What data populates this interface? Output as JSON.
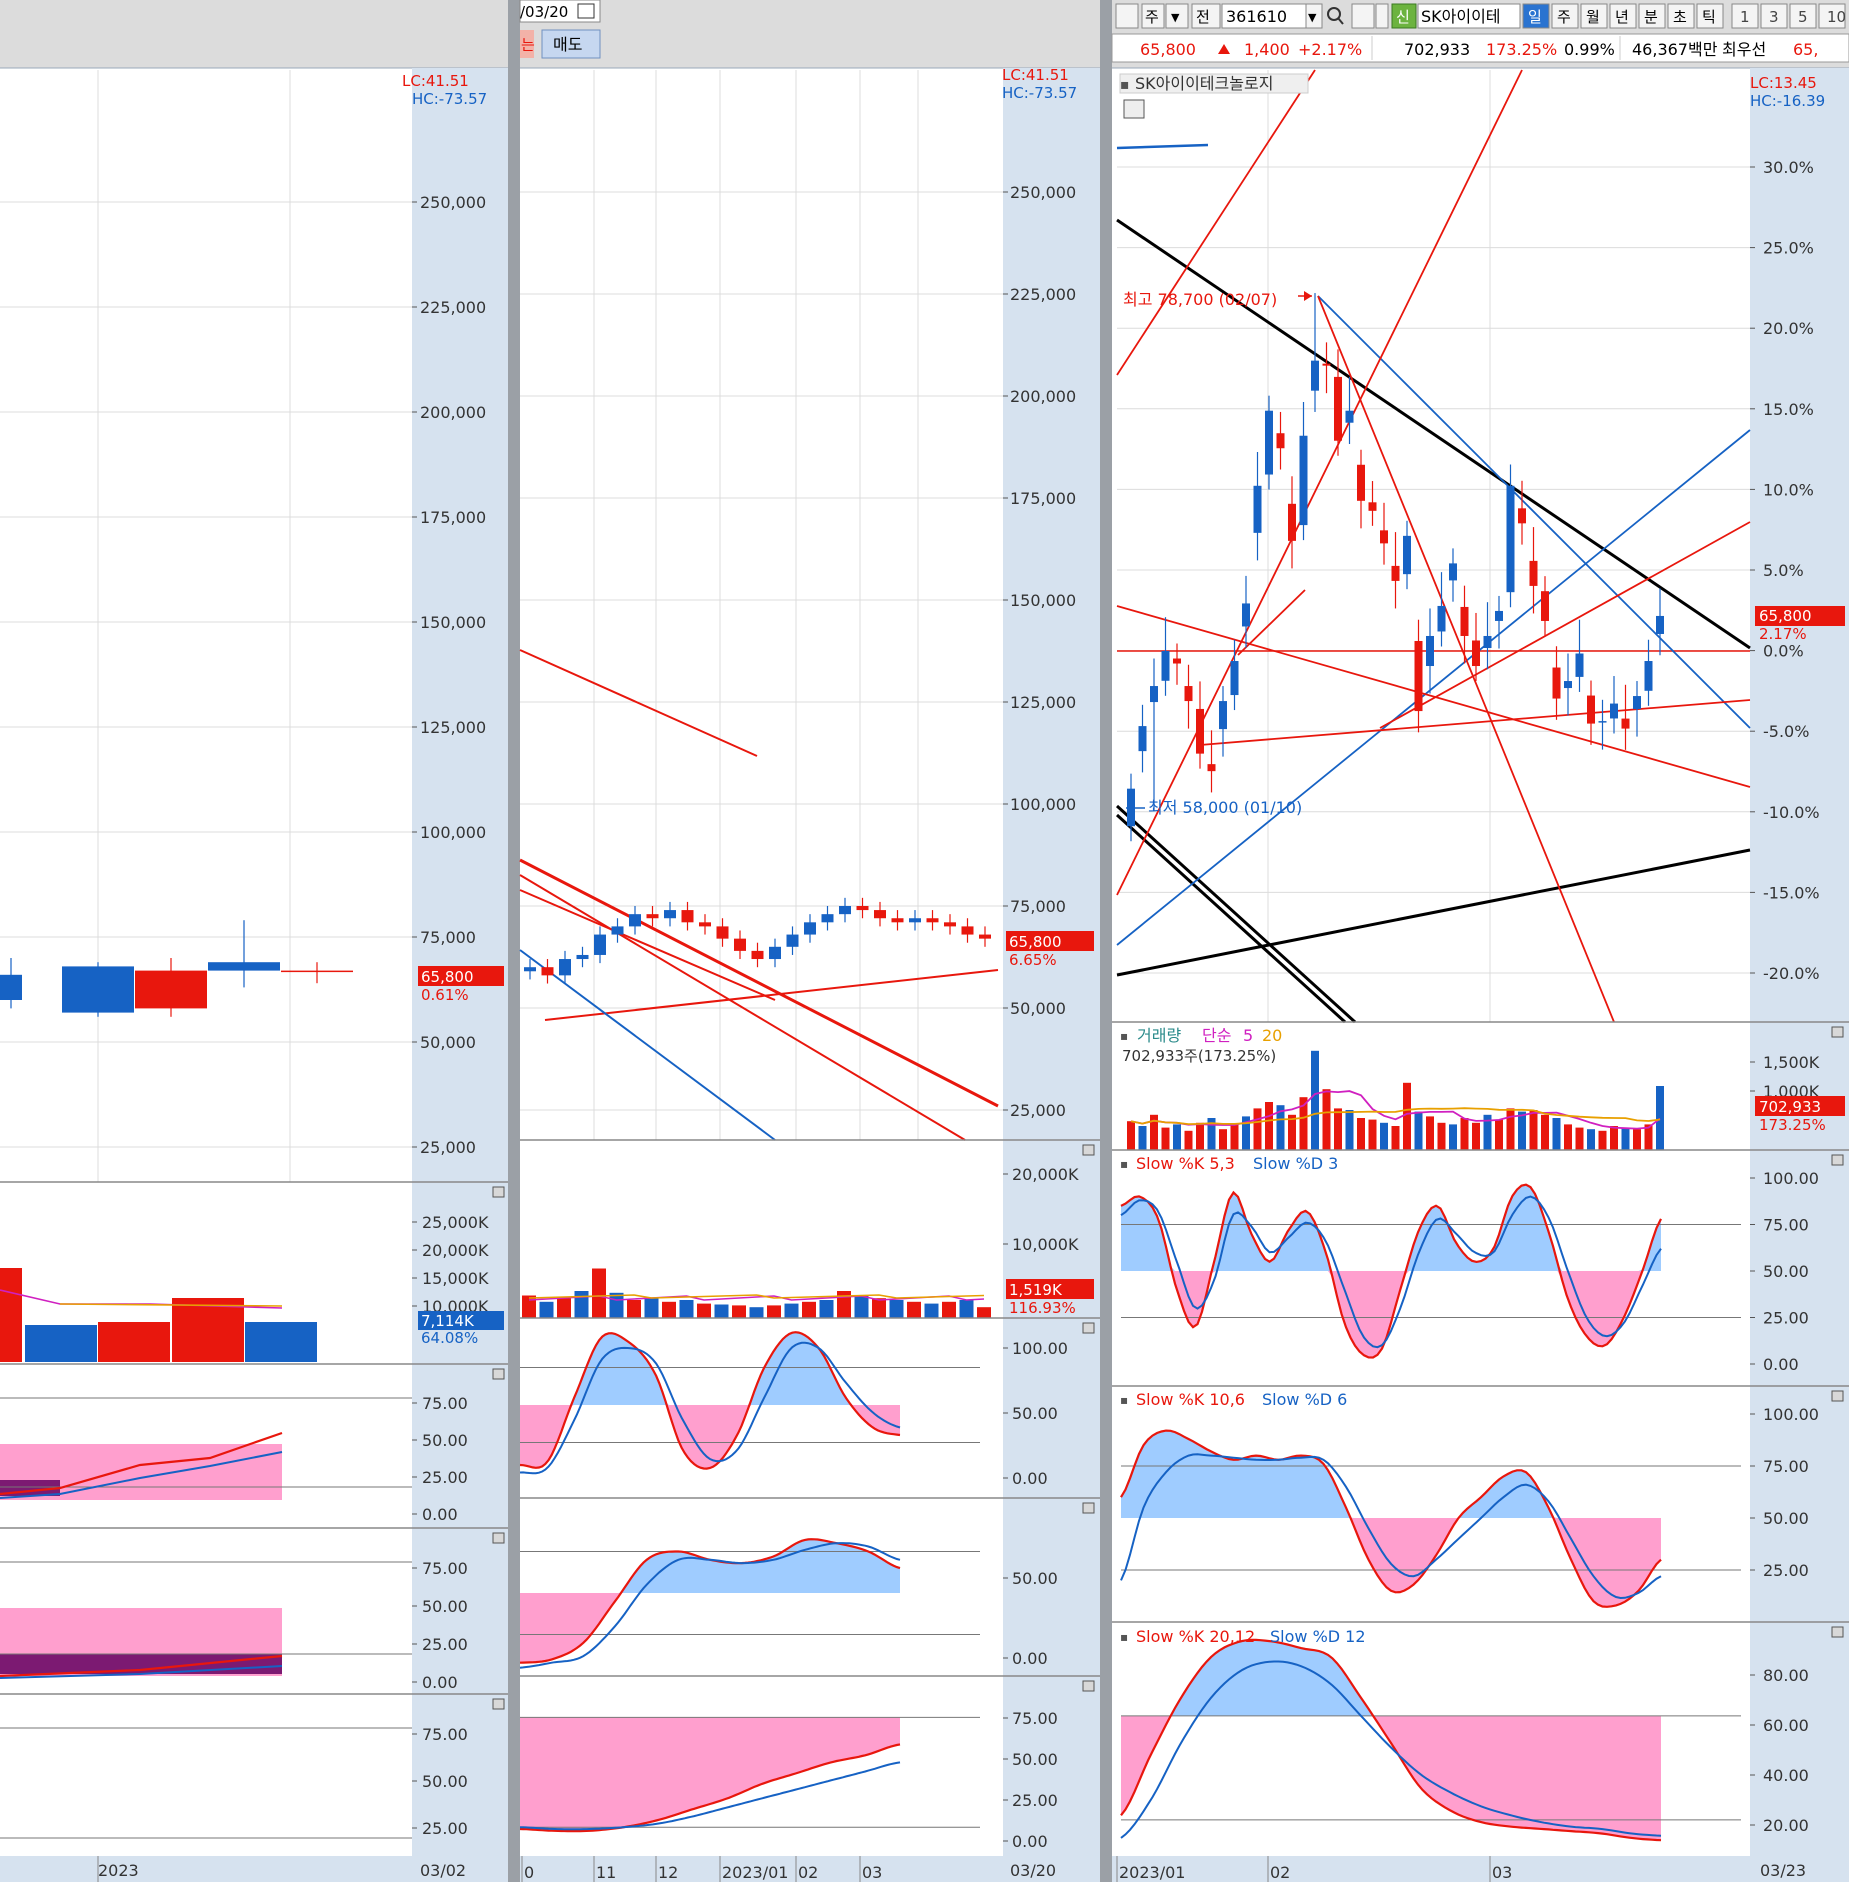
{
  "toolbar": {
    "left_date": "/03/20",
    "sell_button": "매도",
    "buy_button_fragment": "는",
    "tab_ju": "주",
    "tab_jeon": "전",
    "code": "361610",
    "badge_new": "신",
    "stock_name": "SK아이이테",
    "periods": [
      "일",
      "주",
      "월",
      "년",
      "분",
      "초",
      "틱"
    ],
    "active_period": "일",
    "numbers": [
      "1",
      "3",
      "5",
      "10"
    ]
  },
  "quote": {
    "price": "65,800",
    "change": "1,400",
    "change_pct": "+2.17%",
    "volume": "702,933",
    "volume_ratio": "173.25%",
    "turnover": "0.99%",
    "amount": "46,367백만",
    "best_ask_label": "최우선",
    "best_ask_value": "65,"
  },
  "colors": {
    "up": "#e8170d",
    "down": "#1662c4",
    "panel": "#d6e2ef",
    "black": "#000000",
    "pink": "#ff9fce",
    "lightblue": "#9fccff",
    "purple": "#7c1a72"
  },
  "left": {
    "lc": "LC:41.51",
    "hc": "HC:-73.57",
    "date_label": "2023",
    "end_date": "03/02",
    "price_label": "65,800",
    "price_pct": "0.61%",
    "vol_label": "7,114K",
    "vol_pct": "64.08%"
  },
  "mid": {
    "lc": "LC:41.51",
    "hc": "HC:-73.57",
    "end_date": "03/20",
    "price_label": "65,800",
    "price_pct": "6.65%",
    "vol_label": "1,519K",
    "vol_pct": "116.93%",
    "x_labels": [
      "0",
      "11",
      "12",
      "2023/01",
      "02",
      "03"
    ]
  },
  "right": {
    "title": "SK아이이테크놀로지",
    "lc": "LC:13.45",
    "hc": "HC:-16.39",
    "high_ann": "최고 78,700 (02/07)",
    "low_ann": "최저 58,000 (01/10)",
    "price_label": "65,800",
    "price_pct": "2.17%",
    "end_date": "03/23",
    "x_labels": [
      "2023/01",
      "02",
      "03"
    ],
    "vol_title": [
      "거래량",
      "단순",
      "5",
      "20"
    ],
    "vol_sub": "702,933주(173.25%)",
    "vol_label": "702,933",
    "vol_pct": "173.25%",
    "stoch1": [
      "Slow %K 5,3",
      "Slow %D 3"
    ],
    "stoch2": [
      "Slow %K 10,6",
      "Slow %D 6"
    ],
    "stoch3": [
      "Slow %K 20,12",
      "Slow %D 12"
    ]
  },
  "chart_data": [
    {
      "type": "candlestick",
      "series_name": "SK아이이테크놀로지",
      "ylabels": [
        "30.0%",
        "25.0%",
        "20.0%",
        "15.0%",
        "10.0%",
        "5.0%",
        "0.0%",
        "-5.0%",
        "-10.0%",
        "-15.0%",
        "-20.0%"
      ],
      "high": 78700,
      "low": 58000,
      "last": 65800,
      "closes": [
        58900,
        61400,
        63000,
        64400,
        63900,
        62400,
        60300,
        59600,
        62400,
        64000,
        66300,
        71000,
        74000,
        72500,
        68800,
        73000,
        76000,
        75800,
        72800,
        74000,
        70400,
        70000,
        68700,
        67200,
        69000,
        62000,
        65000,
        66200,
        67900,
        65000,
        63800,
        65000,
        66000,
        71000,
        69500,
        67000,
        65600,
        62500,
        63200,
        64300,
        61500,
        61600,
        62300,
        61300,
        62600,
        64000,
        65800
      ],
      "vol_ylabels": [
        "1,500K",
        "1,000K"
      ],
      "stoch_ylabels": [
        "100.00",
        "75.00",
        "50.00",
        "25.00",
        "0.00"
      ],
      "stoch3_ylabels": [
        "80.00",
        "60.00",
        "40.00",
        "20.00"
      ]
    },
    {
      "type": "candlestick",
      "ylabels": [
        "250,000",
        "225,000",
        "200,000",
        "175,000",
        "150,000",
        "125,000",
        "100,000",
        "75,000",
        "50,000",
        "25,000"
      ],
      "vol_ylabels": [
        "20,000K",
        "10,000K"
      ],
      "stoch_ylabels": [
        "100.00",
        "50.00",
        "0.00"
      ],
      "stoch2_ylabels": [
        "50.00",
        "0.00"
      ],
      "stoch3_ylabels": [
        "75.00",
        "50.00",
        "25.00",
        "0.00"
      ]
    },
    {
      "type": "candlestick",
      "ylabels": [
        "250,000",
        "225,000",
        "200,000",
        "175,000",
        "150,000",
        "125,000",
        "100,000",
        "75,000",
        "50,000",
        "25,000"
      ],
      "vol_ylabels": [
        "25,000K",
        "20,000K",
        "15,000K",
        "10,000K"
      ],
      "stoch_ylabels": [
        "75.00",
        "50.00",
        "25.00",
        "0.00"
      ],
      "stoch3_ylabels": [
        "75.00",
        "50.00",
        "25.00"
      ]
    }
  ]
}
